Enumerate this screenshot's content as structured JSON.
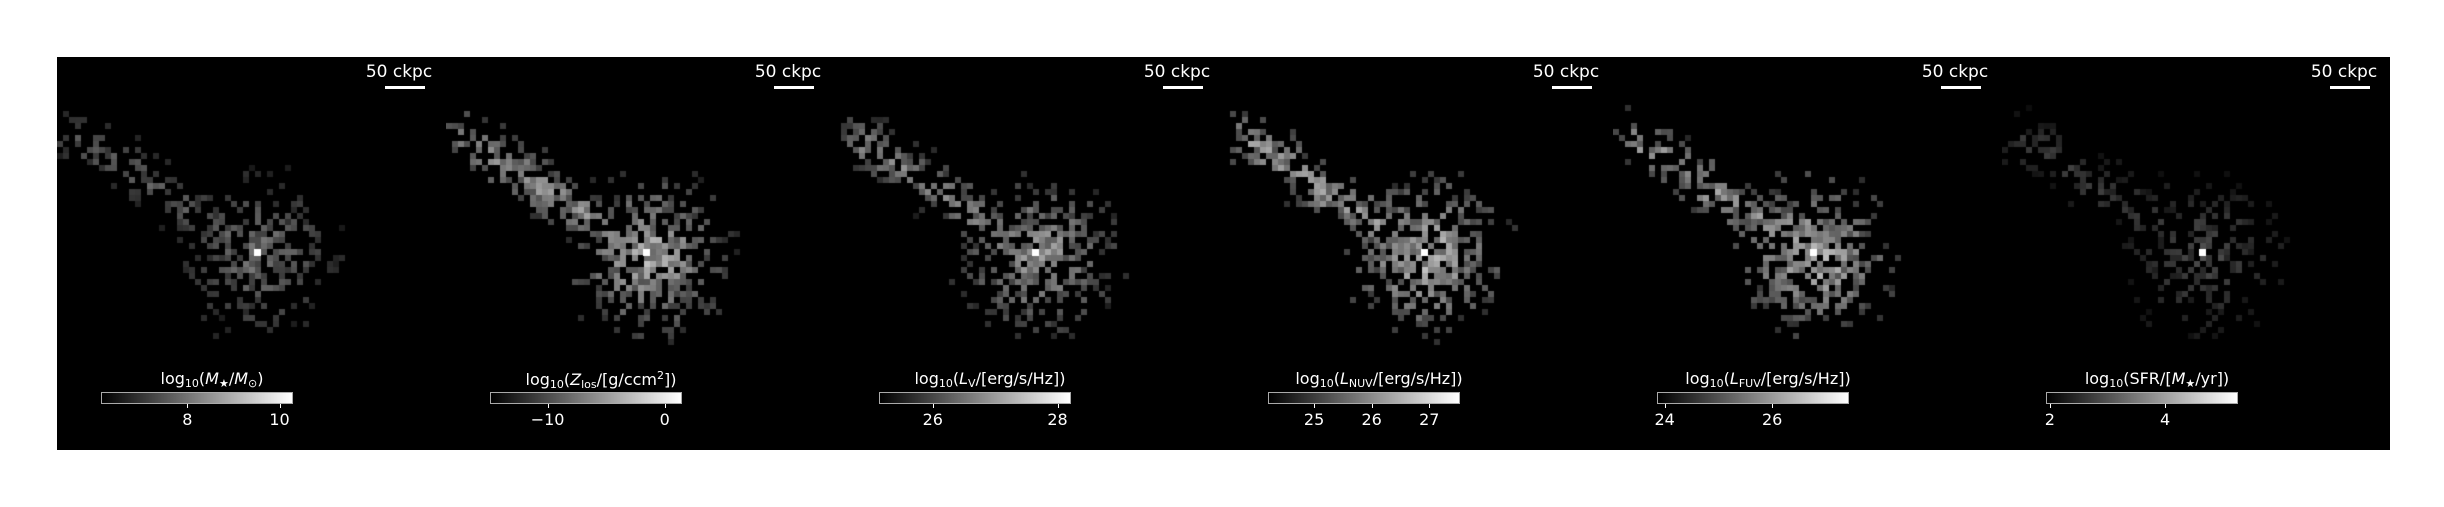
{
  "figure": {
    "panels": [
      {
        "id": "stellar-mass",
        "scalebar": "50 ckpc",
        "colorbar": {
          "label_parts": [
            "log",
            "10",
            "(",
            "M",
            "★",
            "/",
            "M",
            "⊙",
            ")"
          ],
          "ticks": [
            {
              "value": "8",
              "frac": 0.45
            },
            {
              "value": "10",
              "frac": 0.93
            }
          ]
        },
        "image": {
          "quantity": "stellar mass",
          "brightness": 0.45,
          "sparseness": 0.35
        }
      },
      {
        "id": "metallicity",
        "scalebar": "50 ckpc",
        "colorbar": {
          "label_parts": [
            "log",
            "10",
            "(",
            "Z",
            "los",
            "/[g/ccm",
            "2",
            "])"
          ],
          "ticks": [
            {
              "value": "−10",
              "frac": 0.3
            },
            {
              "value": "0",
              "frac": 0.91
            }
          ]
        },
        "image": {
          "quantity": "line-of-sight metallicity",
          "brightness": 0.68,
          "sparseness": 0.62
        }
      },
      {
        "id": "v-band",
        "scalebar": "50 ckpc",
        "colorbar": {
          "label_parts": [
            "log",
            "10",
            "(",
            "L",
            "V",
            "/[erg/s/Hz])"
          ],
          "ticks": [
            {
              "value": "26",
              "frac": 0.28
            },
            {
              "value": "28",
              "frac": 0.93
            }
          ]
        },
        "image": {
          "quantity": "V-band luminosity",
          "brightness": 0.62,
          "sparseness": 0.48
        }
      },
      {
        "id": "nuv",
        "scalebar": "50 ckpc",
        "colorbar": {
          "label_parts": [
            "log",
            "10",
            "(",
            "L",
            "NUV",
            "/[erg/s/Hz])"
          ],
          "ticks": [
            {
              "value": "25",
              "frac": 0.24
            },
            {
              "value": "26",
              "frac": 0.54
            },
            {
              "value": "27",
              "frac": 0.84
            }
          ]
        },
        "image": {
          "quantity": "NUV luminosity",
          "brightness": 0.72,
          "sparseness": 0.5
        }
      },
      {
        "id": "fuv",
        "scalebar": "50 ckpc",
        "colorbar": {
          "label_parts": [
            "log",
            "10",
            "(",
            "L",
            "FUV",
            "/[erg/s/Hz])"
          ],
          "ticks": [
            {
              "value": "24",
              "frac": 0.04
            },
            {
              "value": "26",
              "frac": 0.6
            }
          ]
        },
        "image": {
          "quantity": "FUV luminosity",
          "brightness": 0.72,
          "sparseness": 0.5
        }
      },
      {
        "id": "sfr",
        "scalebar": "50 ckpc",
        "colorbar": {
          "label_parts": [
            "log",
            "10",
            "(SFR/[",
            "M",
            "★",
            "/yr])"
          ],
          "ticks": [
            {
              "value": "2",
              "frac": 0.02
            },
            {
              "value": "4",
              "frac": 0.62
            }
          ]
        },
        "image": {
          "quantity": "star formation rate",
          "brightness": 0.28,
          "sparseness": 0.25
        }
      }
    ],
    "colors": {
      "background": "#000000",
      "foreground": "#ffffff",
      "page": "#ffffff"
    }
  }
}
